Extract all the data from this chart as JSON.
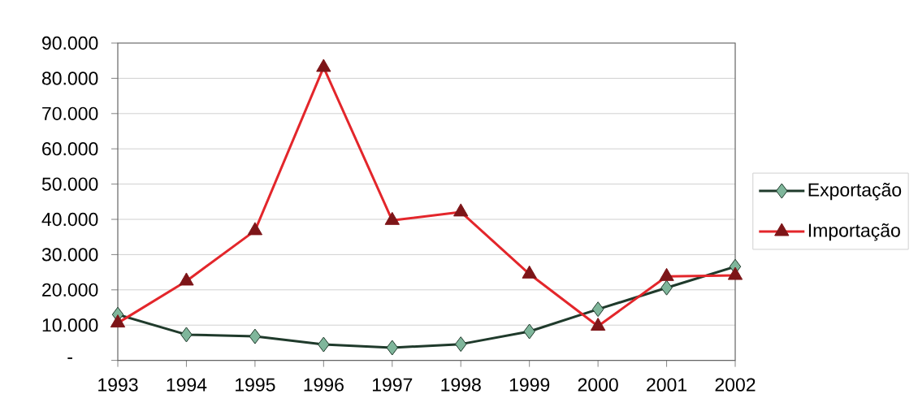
{
  "chart_data": {
    "type": "line",
    "categories": [
      "1993",
      "1994",
      "1995",
      "1996",
      "1997",
      "1998",
      "1999",
      "2000",
      "2001",
      "2002"
    ],
    "series": [
      {
        "name": "Exportação",
        "color": "#1f3a2b",
        "marker": "diamond",
        "values": [
          13000,
          7300,
          6800,
          4500,
          3600,
          4600,
          8200,
          14500,
          20600,
          26600
        ]
      },
      {
        "name": "Importação",
        "color": "#e3262b",
        "marker": "triangle",
        "values": [
          10600,
          22500,
          36800,
          83100,
          39700,
          42100,
          24500,
          9700,
          23800,
          24100
        ]
      }
    ],
    "ylim": [
      0,
      90000
    ],
    "yticks": [
      {
        "value": 0,
        "label": "-"
      },
      {
        "value": 10000,
        "label": "10.000"
      },
      {
        "value": 20000,
        "label": "20.000"
      },
      {
        "value": 30000,
        "label": "30.000"
      },
      {
        "value": 40000,
        "label": "40.000"
      },
      {
        "value": 50000,
        "label": "50.000"
      },
      {
        "value": 60000,
        "label": "60.000"
      },
      {
        "value": 70000,
        "label": "70.000"
      },
      {
        "value": 80000,
        "label": "80.000"
      },
      {
        "value": 90000,
        "label": "90.000"
      }
    ],
    "grid": "y",
    "legend": "right"
  }
}
